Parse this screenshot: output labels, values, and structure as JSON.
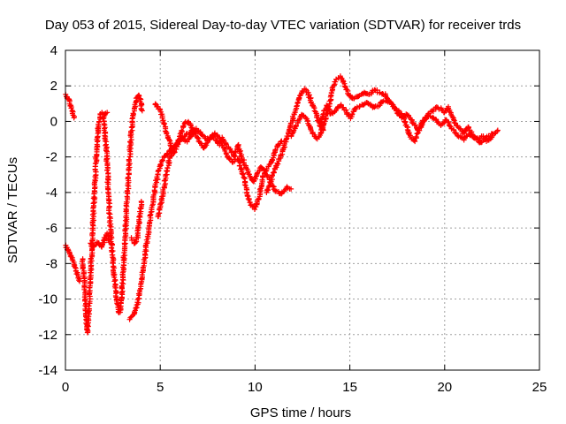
{
  "chart_data": {
    "type": "scatter",
    "title": "Day 053 of 2015, Sidereal Day-to-day VTEC variation (SDTVAR) for receiver trds",
    "xlabel": "GPS time / hours",
    "ylabel": "SDTVAR / TECUs",
    "xlim": [
      0,
      25
    ],
    "ylim": [
      -14,
      4
    ],
    "xticks": [
      0,
      5,
      10,
      15,
      20,
      25
    ],
    "yticks": [
      -14,
      -12,
      -10,
      -8,
      -6,
      -4,
      -2,
      0,
      2,
      4
    ],
    "grid": true,
    "marker": "+",
    "series": [
      {
        "name": "SDTVAR",
        "color": "#ff0000",
        "tracks": [
          [
            [
              0.0,
              1.5
            ],
            [
              0.15,
              1.3
            ],
            [
              0.3,
              0.8
            ],
            [
              0.45,
              0.2
            ]
          ],
          [
            [
              0.0,
              -7.0
            ],
            [
              0.15,
              -7.3
            ],
            [
              0.3,
              -7.6
            ],
            [
              0.45,
              -8.0
            ],
            [
              0.6,
              -8.5
            ],
            [
              0.75,
              -9.0
            ]
          ],
          [
            [
              0.9,
              -7.7
            ],
            [
              1.0,
              -9.0
            ],
            [
              1.05,
              -10.0
            ],
            [
              1.1,
              -11.2
            ],
            [
              1.15,
              -11.9
            ],
            [
              1.25,
              -10.5
            ],
            [
              1.35,
              -8.0
            ],
            [
              1.45,
              -6.0
            ],
            [
              1.55,
              -3.5
            ],
            [
              1.65,
              -1.5
            ],
            [
              1.75,
              -0.2
            ],
            [
              1.85,
              0.4
            ],
            [
              1.95,
              0.5
            ],
            [
              2.05,
              0.4
            ],
            [
              2.2,
              0.5
            ]
          ],
          [
            [
              1.3,
              -6.9
            ],
            [
              1.5,
              -7.0
            ],
            [
              1.7,
              -6.8
            ],
            [
              1.9,
              -7.1
            ],
            [
              2.0,
              -6.8
            ],
            [
              2.1,
              -6.5
            ],
            [
              2.2,
              -6.3
            ],
            [
              2.3,
              -6.8
            ]
          ],
          [
            [
              2.0,
              0.3
            ],
            [
              2.15,
              -1.5
            ],
            [
              2.25,
              -3.5
            ],
            [
              2.35,
              -5.5
            ],
            [
              2.45,
              -7.0
            ],
            [
              2.55,
              -8.5
            ],
            [
              2.65,
              -9.5
            ],
            [
              2.75,
              -10.3
            ],
            [
              2.85,
              -10.8
            ],
            [
              2.95,
              -10.0
            ],
            [
              3.05,
              -8.5
            ],
            [
              3.15,
              -6.5
            ],
            [
              3.25,
              -4.5
            ],
            [
              3.35,
              -2.5
            ],
            [
              3.45,
              -1.0
            ],
            [
              3.55,
              0.2
            ],
            [
              3.65,
              0.8
            ],
            [
              3.75,
              1.3
            ],
            [
              3.85,
              1.5
            ],
            [
              3.95,
              1.2
            ],
            [
              4.05,
              0.6
            ]
          ],
          [
            [
              3.5,
              -6.6
            ],
            [
              3.7,
              -6.9
            ],
            [
              3.8,
              -6.5
            ],
            [
              3.9,
              -5.5
            ],
            [
              4.0,
              -4.5
            ]
          ],
          [
            [
              3.4,
              -11.1
            ],
            [
              3.6,
              -10.9
            ],
            [
              3.8,
              -10.3
            ],
            [
              4.0,
              -9.0
            ],
            [
              4.2,
              -7.5
            ],
            [
              4.4,
              -6.0
            ],
            [
              4.6,
              -4.6
            ],
            [
              4.8,
              -3.3
            ],
            [
              5.0,
              -2.5
            ],
            [
              5.2,
              -2.0
            ],
            [
              5.4,
              -1.8
            ],
            [
              5.6,
              -1.6
            ],
            [
              5.8,
              -1.4
            ],
            [
              6.0,
              -1.0
            ],
            [
              6.3,
              -0.8
            ],
            [
              6.6,
              -0.6
            ],
            [
              6.9,
              -0.4
            ]
          ],
          [
            [
              4.7,
              1.0
            ],
            [
              4.9,
              0.8
            ],
            [
              5.1,
              0.3
            ],
            [
              5.3,
              -0.5
            ],
            [
              5.5,
              -1.2
            ],
            [
              5.7,
              -1.8
            ],
            [
              5.9,
              -1.4
            ],
            [
              6.1,
              -0.6
            ],
            [
              6.3,
              -0.1
            ],
            [
              6.5,
              0.0
            ],
            [
              6.7,
              -0.4
            ],
            [
              6.9,
              -0.8
            ],
            [
              7.1,
              -1.2
            ],
            [
              7.3,
              -1.5
            ],
            [
              7.5,
              -1.1
            ],
            [
              7.7,
              -0.8
            ],
            [
              7.9,
              -1.0
            ],
            [
              8.1,
              -1.3
            ],
            [
              8.3,
              -0.9
            ],
            [
              8.5,
              -1.4
            ],
            [
              8.7,
              -1.6
            ],
            [
              8.9,
              -2.0
            ],
            [
              9.1,
              -1.3
            ],
            [
              9.3,
              -2.0
            ],
            [
              9.5,
              -2.5
            ],
            [
              9.7,
              -3.0
            ],
            [
              9.9,
              -3.4
            ],
            [
              10.1,
              -3.0
            ],
            [
              10.3,
              -2.6
            ],
            [
              10.5,
              -2.8
            ],
            [
              10.7,
              -3.2
            ],
            [
              10.9,
              -3.6
            ],
            [
              11.1,
              -3.9
            ],
            [
              11.3,
              -4.1
            ],
            [
              11.5,
              -3.9
            ],
            [
              11.7,
              -3.7
            ],
            [
              11.9,
              -3.8
            ]
          ],
          [
            [
              4.9,
              -5.4
            ],
            [
              5.1,
              -4.3
            ],
            [
              5.3,
              -3.1
            ],
            [
              5.5,
              -2.1
            ],
            [
              5.7,
              -1.5
            ],
            [
              5.9,
              -1.2
            ],
            [
              6.1,
              -1.0
            ],
            [
              6.4,
              -1.1
            ],
            [
              6.7,
              -0.7
            ],
            [
              7.0,
              -0.5
            ],
            [
              7.3,
              -0.9
            ],
            [
              7.6,
              -1.0
            ],
            [
              7.9,
              -0.7
            ],
            [
              8.2,
              -1.1
            ],
            [
              8.5,
              -1.9
            ],
            [
              8.8,
              -2.3
            ],
            [
              9.1,
              -2.1
            ],
            [
              9.4,
              -3.1
            ],
            [
              9.6,
              -4.1
            ],
            [
              9.8,
              -4.7
            ],
            [
              10.0,
              -4.9
            ],
            [
              10.2,
              -4.3
            ],
            [
              10.4,
              -3.1
            ],
            [
              10.6,
              -2.7
            ],
            [
              10.8,
              -2.4
            ],
            [
              11.0,
              -1.9
            ],
            [
              11.2,
              -1.3
            ],
            [
              11.4,
              -1.1
            ]
          ],
          [
            [
              10.6,
              -4.0
            ],
            [
              10.8,
              -3.5
            ],
            [
              11.0,
              -2.8
            ],
            [
              11.2,
              -2.3
            ],
            [
              11.4,
              -1.8
            ],
            [
              11.6,
              -1.2
            ],
            [
              11.8,
              -0.5
            ],
            [
              12.0,
              0.2
            ],
            [
              12.2,
              0.9
            ],
            [
              12.4,
              1.5
            ],
            [
              12.6,
              1.8
            ],
            [
              12.8,
              1.6
            ],
            [
              13.0,
              1.0
            ],
            [
              13.2,
              0.5
            ],
            [
              13.4,
              -0.2
            ],
            [
              13.6,
              -0.5
            ]
          ],
          [
            [
              11.9,
              -0.8
            ],
            [
              12.1,
              -0.4
            ],
            [
              12.3,
              0.1
            ],
            [
              12.5,
              0.4
            ],
            [
              12.7,
              0.2
            ],
            [
              12.9,
              -0.3
            ],
            [
              13.1,
              -0.8
            ],
            [
              13.3,
              -1.0
            ],
            [
              13.5,
              -0.6
            ],
            [
              13.7,
              0.0
            ],
            [
              13.9,
              0.9
            ],
            [
              14.1,
              1.9
            ],
            [
              14.3,
              2.4
            ],
            [
              14.5,
              2.5
            ],
            [
              14.7,
              2.1
            ],
            [
              14.9,
              1.6
            ],
            [
              15.1,
              1.3
            ],
            [
              15.4,
              1.4
            ],
            [
              15.7,
              1.6
            ],
            [
              16.0,
              1.5
            ],
            [
              16.3,
              1.8
            ],
            [
              16.6,
              1.6
            ],
            [
              16.9,
              1.5
            ],
            [
              17.2,
              1.0
            ],
            [
              17.5,
              0.6
            ],
            [
              17.8,
              0.3
            ],
            [
              18.0,
              -0.3
            ],
            [
              18.2,
              -0.9
            ],
            [
              18.4,
              -1.1
            ],
            [
              18.6,
              -0.6
            ],
            [
              18.8,
              -0.2
            ],
            [
              19.0,
              0.2
            ],
            [
              19.2,
              0.5
            ],
            [
              19.4,
              0.6
            ],
            [
              19.6,
              0.8
            ],
            [
              19.8,
              0.7
            ],
            [
              20.0,
              0.5
            ],
            [
              20.2,
              0.8
            ],
            [
              20.4,
              0.3
            ],
            [
              20.6,
              -0.2
            ],
            [
              20.8,
              -0.4
            ],
            [
              21.0,
              -0.7
            ],
            [
              21.2,
              -0.3
            ],
            [
              21.4,
              -0.6
            ],
            [
              21.6,
              -1.0
            ],
            [
              21.8,
              -0.9
            ],
            [
              22.0,
              -0.8
            ],
            [
              22.2,
              -1.1
            ],
            [
              22.4,
              -1.0
            ],
            [
              22.6,
              -0.7
            ],
            [
              22.8,
              -0.5
            ]
          ],
          [
            [
              13.4,
              -0.3
            ],
            [
              13.6,
              0.4
            ],
            [
              13.8,
              0.9
            ],
            [
              14.0,
              0.4
            ],
            [
              14.2,
              0.6
            ],
            [
              14.5,
              0.9
            ],
            [
              14.8,
              0.6
            ],
            [
              15.0,
              0.2
            ],
            [
              15.3,
              0.7
            ],
            [
              15.6,
              0.9
            ],
            [
              15.9,
              1.1
            ],
            [
              16.2,
              0.8
            ],
            [
              16.5,
              0.9
            ],
            [
              16.8,
              1.2
            ],
            [
              17.1,
              1.1
            ],
            [
              17.4,
              0.7
            ],
            [
              17.7,
              0.2
            ],
            [
              18.0,
              0.4
            ],
            [
              18.3,
              0.0
            ],
            [
              18.6,
              -0.5
            ],
            [
              18.9,
              0.1
            ],
            [
              19.2,
              0.3
            ],
            [
              19.5,
              0.1
            ],
            [
              19.8,
              -0.2
            ],
            [
              20.1,
              0.1
            ],
            [
              20.4,
              -0.4
            ],
            [
              20.7,
              -0.8
            ],
            [
              21.0,
              -1.0
            ],
            [
              21.3,
              -0.7
            ],
            [
              21.6,
              -0.9
            ],
            [
              21.9,
              -1.2
            ],
            [
              22.2,
              -0.9
            ],
            [
              22.5,
              -0.7
            ]
          ]
        ]
      }
    ]
  }
}
